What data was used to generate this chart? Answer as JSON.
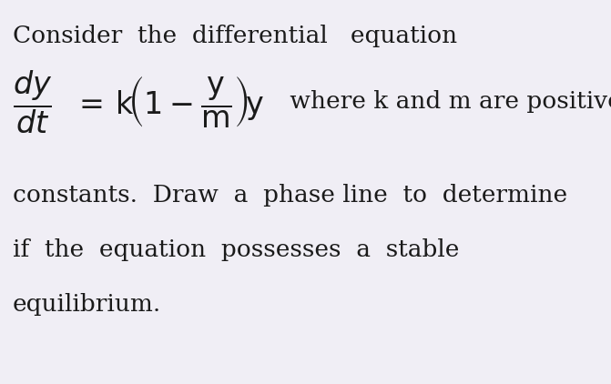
{
  "background_color": "#f0eef5",
  "text_color": "#1a1a1a",
  "line1": "Consider  the  differential   equation",
  "line3_text": " where k and m are positive",
  "line4": "constants.  Draw  a  phase line  to  determine",
  "line5": "if  the  equation  possesses  a  stable",
  "line6": "equilibrium.",
  "font_size_main": 19,
  "font_size_math": 22,
  "fig_width": 6.71,
  "fig_height": 4.22,
  "dpi": 100
}
